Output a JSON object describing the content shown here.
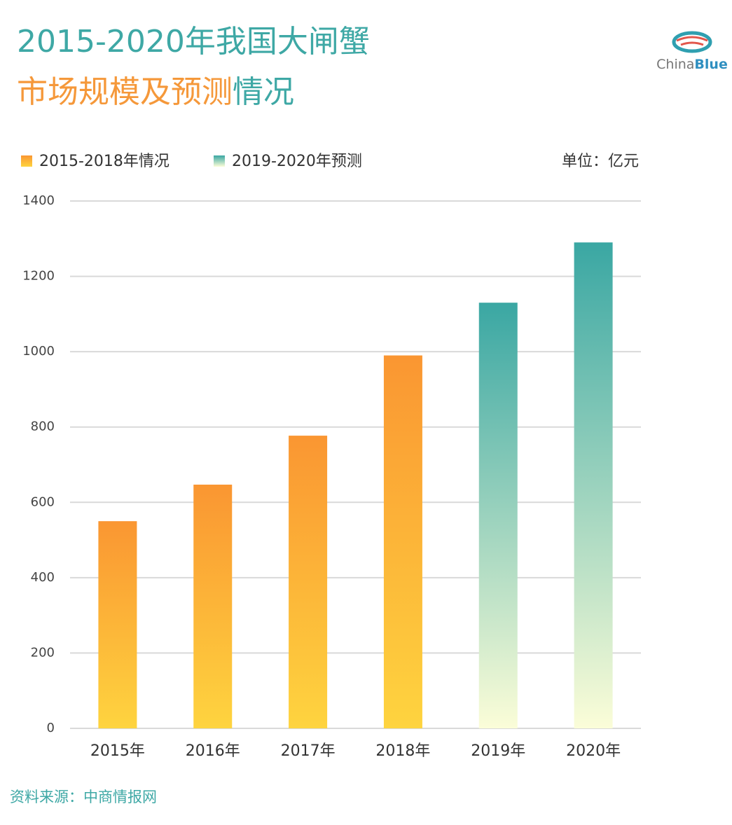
{
  "chart_data": {
    "type": "bar",
    "title": "2015-2020年我国大闸蟹",
    "subtitle": [
      "市场规模及预测",
      "情况"
    ],
    "unit": "单位：亿元",
    "source": "资料来源：中商情报网",
    "logo": [
      "China",
      "Blue"
    ],
    "categories": [
      "2015年",
      "2016年",
      "2017年",
      "2018年",
      "2019年",
      "2020年"
    ],
    "series": [
      {
        "name": "2015-2018年情况",
        "color": [
          "#fa9632",
          "#fed43f"
        ],
        "values": [
          550,
          647,
          777,
          990,
          null,
          null
        ]
      },
      {
        "name": "2019-2020年预测",
        "color": [
          "#3aa7a3",
          "#fbfdd8"
        ],
        "values": [
          null,
          null,
          null,
          null,
          1130,
          1290
        ]
      }
    ],
    "ylim": [
      0,
      1400
    ],
    "yticks": [
      0,
      200,
      400,
      600,
      800,
      1000,
      1200,
      1400
    ],
    "grid": true
  }
}
